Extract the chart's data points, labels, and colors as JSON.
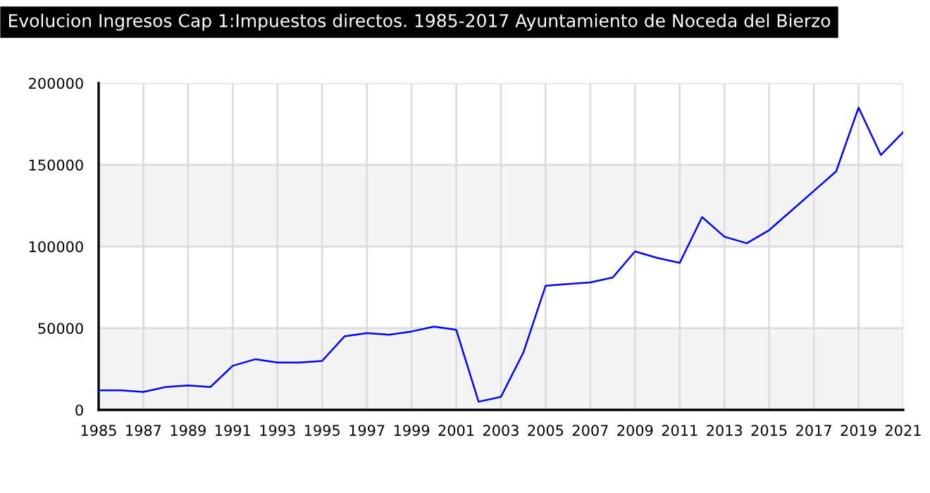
{
  "chart_data": {
    "type": "line",
    "title": "Evolucion Ingresos Cap 1:Impuestos directos. 1985-2017 Ayuntamiento de Noceda del Bierzo",
    "x": [
      1985,
      1986,
      1987,
      1988,
      1989,
      1990,
      1991,
      1992,
      1993,
      1994,
      1995,
      1996,
      1997,
      1998,
      1999,
      2000,
      2001,
      2002,
      2003,
      2004,
      2005,
      2006,
      2007,
      2008,
      2009,
      2010,
      2011,
      2012,
      2013,
      2014,
      2015,
      2016,
      2017,
      2018,
      2019,
      2020,
      2021
    ],
    "series": [
      {
        "color": "#0000ff",
        "values": [
          12000,
          12000,
          11000,
          14000,
          15000,
          14000,
          27000,
          31000,
          29000,
          29000,
          30000,
          45000,
          47000,
          46000,
          48000,
          51000,
          49000,
          5000,
          8000,
          35000,
          76000,
          77000,
          78000,
          81000,
          97000,
          93000,
          90000,
          118000,
          106000,
          102000,
          110000,
          122000,
          134000,
          146000,
          185000,
          156000,
          170000
        ]
      }
    ],
    "xlim": [
      1985,
      2021
    ],
    "xticks": [
      1985,
      1987,
      1989,
      1991,
      1993,
      1995,
      1997,
      1999,
      2001,
      2003,
      2005,
      2007,
      2009,
      2011,
      2013,
      2015,
      2017,
      2019,
      2021
    ],
    "ylim": [
      0,
      200000
    ],
    "yticks": [
      0,
      50000,
      100000,
      150000,
      200000
    ],
    "bands": [
      {
        "axis": "y",
        "from": 0,
        "to": 50000,
        "color": "#f4f4f4"
      },
      {
        "axis": "y",
        "from": 100000,
        "to": 150000,
        "color": "#f4f4f4"
      }
    ],
    "grid": true,
    "marker": "none",
    "line_style": "solid"
  }
}
